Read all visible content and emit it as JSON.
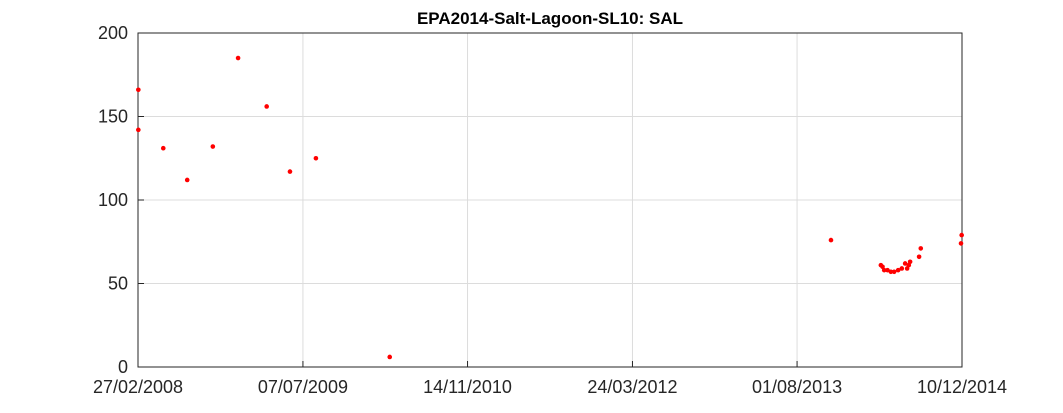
{
  "chart_data": {
    "type": "scatter",
    "title": "EPA2014-Salt-Lagoon-SL10: SAL",
    "xlabel": "",
    "ylabel": "",
    "x_type": "date",
    "xlim": [
      "2008-02-27",
      "2014-12-10"
    ],
    "ylim": [
      0,
      200
    ],
    "x_ticks": [
      {
        "date": "2008-02-27",
        "label": "27/02/2008"
      },
      {
        "date": "2009-07-07",
        "label": "07/07/2009"
      },
      {
        "date": "2010-11-14",
        "label": "14/11/2010"
      },
      {
        "date": "2012-03-24",
        "label": "24/03/2012"
      },
      {
        "date": "2013-08-01",
        "label": "01/08/2013"
      },
      {
        "date": "2014-12-10",
        "label": "10/12/2014"
      }
    ],
    "y_ticks": [
      0,
      50,
      100,
      150,
      200
    ],
    "grid": true,
    "legend": "none",
    "marker_color": "#ff0000",
    "points": [
      {
        "x": "2008-02-28",
        "y": 166
      },
      {
        "x": "2008-02-28",
        "y": 142
      },
      {
        "x": "2008-05-13",
        "y": 131
      },
      {
        "x": "2008-07-24",
        "y": 112
      },
      {
        "x": "2008-10-09",
        "y": 132
      },
      {
        "x": "2008-12-24",
        "y": 185
      },
      {
        "x": "2009-03-20",
        "y": 156
      },
      {
        "x": "2009-05-29",
        "y": 117
      },
      {
        "x": "2009-08-15",
        "y": 125
      },
      {
        "x": "2010-03-25",
        "y": 6
      },
      {
        "x": "2013-11-11",
        "y": 76
      },
      {
        "x": "2014-04-10",
        "y": 61
      },
      {
        "x": "2014-04-15",
        "y": 60
      },
      {
        "x": "2014-04-20",
        "y": 58
      },
      {
        "x": "2014-04-30",
        "y": 58
      },
      {
        "x": "2014-05-10",
        "y": 57
      },
      {
        "x": "2014-05-20",
        "y": 57
      },
      {
        "x": "2014-06-01",
        "y": 58
      },
      {
        "x": "2014-06-12",
        "y": 59
      },
      {
        "x": "2014-06-22",
        "y": 62
      },
      {
        "x": "2014-06-28",
        "y": 59
      },
      {
        "x": "2014-07-03",
        "y": 61
      },
      {
        "x": "2014-07-07",
        "y": 63
      },
      {
        "x": "2014-08-03",
        "y": 66
      },
      {
        "x": "2014-08-08",
        "y": 71
      },
      {
        "x": "2014-12-07",
        "y": 74
      },
      {
        "x": "2014-12-09",
        "y": 79
      }
    ]
  }
}
